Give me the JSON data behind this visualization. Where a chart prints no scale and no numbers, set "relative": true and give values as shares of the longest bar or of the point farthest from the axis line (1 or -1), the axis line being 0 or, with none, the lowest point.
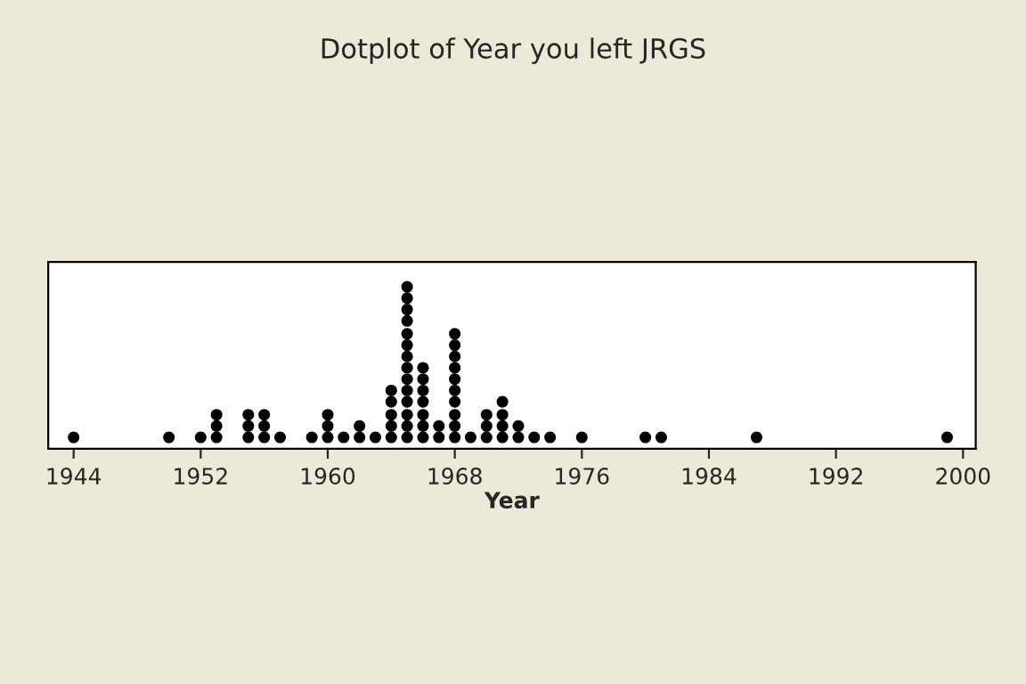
{
  "chart_data": {
    "type": "scatter",
    "title": "Dotplot of Year you left JRGS",
    "xlabel": "Year",
    "relative": true,
    "marker": "circle",
    "grid": false,
    "xlim": [
      1942.4,
      2000.8
    ],
    "xticks": [
      1944,
      1952,
      1960,
      1968,
      1976,
      1984,
      1992,
      2000
    ],
    "series": [
      {
        "color": "#000000",
        "x": [
          1944,
          1950,
          1952,
          1953,
          1953,
          1953,
          1955,
          1955,
          1955,
          1956,
          1956,
          1956,
          1957,
          1959,
          1960,
          1960,
          1960,
          1961,
          1962,
          1962,
          1963,
          1964,
          1964,
          1964,
          1964,
          1964,
          1965,
          1965,
          1965,
          1965,
          1965,
          1965,
          1965,
          1965,
          1965,
          1965,
          1965,
          1965,
          1965,
          1965,
          1966,
          1966,
          1966,
          1966,
          1966,
          1966,
          1966,
          1967,
          1967,
          1968,
          1968,
          1968,
          1968,
          1968,
          1968,
          1968,
          1968,
          1968,
          1968,
          1969,
          1970,
          1970,
          1970,
          1971,
          1971,
          1971,
          1971,
          1972,
          1972,
          1973,
          1974,
          1976,
          1980,
          1981,
          1987,
          1999
        ],
        "values": [
          0.07,
          0.07,
          0.07,
          0.07,
          0.14,
          0.21,
          0.07,
          0.14,
          0.21,
          0.07,
          0.14,
          0.21,
          0.07,
          0.07,
          0.07,
          0.14,
          0.21,
          0.07,
          0.07,
          0.14,
          0.07,
          0.07,
          0.14,
          0.21,
          0.29,
          0.36,
          0.07,
          0.14,
          0.21,
          0.29,
          0.36,
          0.43,
          0.5,
          0.57,
          0.64,
          0.71,
          0.79,
          0.86,
          0.93,
          1,
          0.07,
          0.14,
          0.21,
          0.29,
          0.36,
          0.43,
          0.5,
          0.07,
          0.14,
          0.07,
          0.14,
          0.21,
          0.29,
          0.36,
          0.43,
          0.5,
          0.57,
          0.64,
          0.71,
          0.07,
          0.07,
          0.14,
          0.21,
          0.07,
          0.14,
          0.21,
          0.29,
          0.07,
          0.14,
          0.07,
          0.07,
          0.07,
          0.07,
          0.07,
          0.07,
          0.07
        ]
      }
    ]
  }
}
